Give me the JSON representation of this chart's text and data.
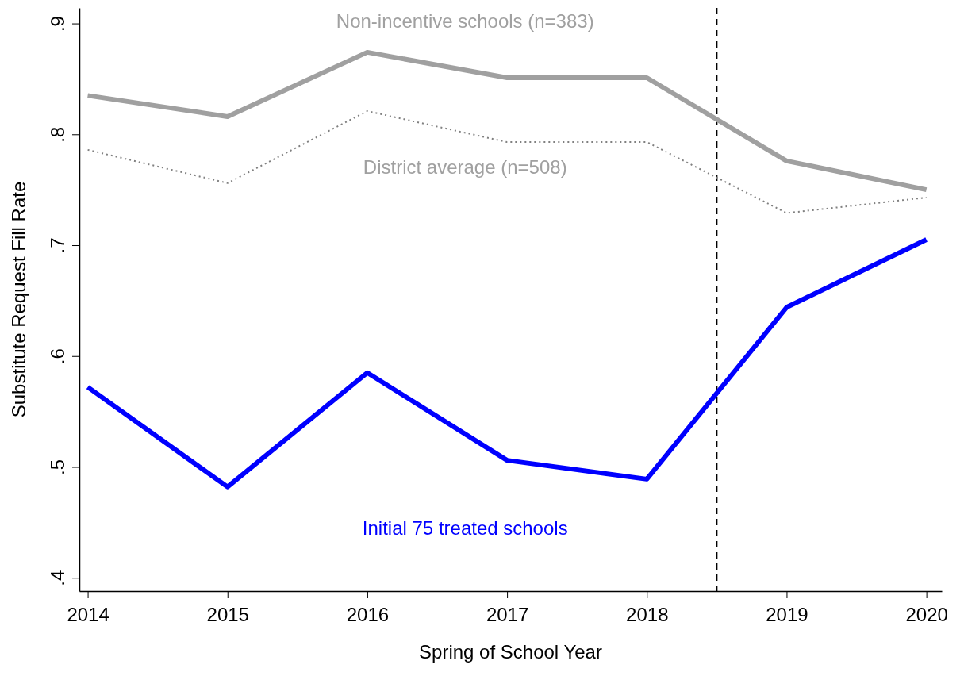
{
  "chart_data": {
    "type": "line",
    "xlabel": "Spring of School Year",
    "ylabel": "Substitute Request Fill Rate",
    "x": [
      2014,
      2015,
      2016,
      2017,
      2018,
      2019,
      2020
    ],
    "xlim": [
      2013.94,
      2020.11
    ],
    "xticks": [
      2014,
      2015,
      2016,
      2017,
      2018,
      2019,
      2020
    ],
    "ylim": [
      0.388,
      0.914
    ],
    "yticks": [
      {
        "value": 0.4,
        "label": ".4"
      },
      {
        "value": 0.5,
        "label": ".5"
      },
      {
        "value": 0.6,
        "label": ".6"
      },
      {
        "value": 0.7,
        "label": ".7"
      },
      {
        "value": 0.8,
        "label": ".8"
      },
      {
        "value": 0.9,
        "label": ".9"
      }
    ],
    "grid": false,
    "marker": "none",
    "series": [
      {
        "name": "Non-incentive schools (n=383)",
        "color": "#a0a0a0",
        "line_style": "solid",
        "values": [
          0.835,
          0.816,
          0.874,
          0.851,
          0.851,
          0.776,
          0.75
        ]
      },
      {
        "name": "District average (n=508)",
        "color": "#808080",
        "line_style": "dotted",
        "values": [
          0.786,
          0.756,
          0.821,
          0.793,
          0.793,
          0.729,
          0.743
        ]
      },
      {
        "name": "Initial 75 treated schools",
        "color": "#0000ff",
        "line_style": "solid",
        "values": [
          0.572,
          0.482,
          0.585,
          0.506,
          0.489,
          0.644,
          0.705
        ]
      }
    ],
    "ref_lines": [
      {
        "axis": "x",
        "value": 2018.5,
        "color": "#000000",
        "line_style": "dashed"
      }
    ]
  }
}
